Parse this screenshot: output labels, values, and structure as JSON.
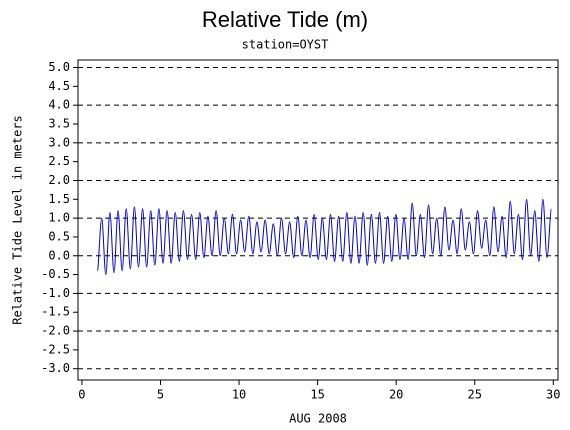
{
  "chart_data": {
    "type": "line",
    "title": "Relative Tide (m)",
    "subtitle": "station=OYST",
    "x_label": "AUG 2008",
    "y_label": "Relative Tide Level in meters",
    "xlim": [
      -0.25,
      30.3
    ],
    "ylim": [
      -3.3,
      5.2
    ],
    "xticks": [
      0,
      5,
      10,
      15,
      20,
      25,
      30
    ],
    "yticks": [
      {
        "value": 5,
        "label": "5.0"
      },
      4.5,
      {
        "value": 4,
        "label": "4.0"
      },
      3.5,
      {
        "value": 3,
        "label": "3.0"
      },
      2.5,
      {
        "value": 2,
        "label": "2.0"
      },
      1.5,
      {
        "value": 1,
        "label": "1.0"
      },
      0.5,
      {
        "value": 0,
        "label": "0.0"
      },
      -0.5,
      {
        "value": -1,
        "label": "-1.0"
      },
      -1.5,
      {
        "value": -2,
        "label": "-2.0"
      },
      -2.5,
      {
        "value": -3,
        "label": "-3.0"
      }
    ],
    "grid": "dashed",
    "x": [
      1.0,
      1.26,
      1.52,
      1.78,
      2.04,
      2.3,
      2.56,
      2.82,
      3.08,
      3.34,
      3.6,
      3.86,
      4.12,
      4.38,
      4.64,
      4.9,
      5.16,
      5.42,
      5.68,
      5.94,
      6.2,
      6.46,
      6.72,
      6.98,
      7.24,
      7.5,
      7.76,
      8.02,
      8.28,
      8.54,
      8.8,
      9.06,
      9.32,
      9.58,
      9.84,
      10.1,
      10.36,
      10.62,
      10.88,
      11.14,
      11.4,
      11.66,
      11.92,
      12.18,
      12.44,
      12.7,
      12.96,
      13.22,
      13.48,
      13.74,
      14.0,
      14.26,
      14.52,
      14.78,
      15.04,
      15.3,
      15.56,
      15.82,
      16.08,
      16.34,
      16.6,
      16.86,
      17.12,
      17.38,
      17.64,
      17.9,
      18.16,
      18.42,
      18.68,
      18.94,
      19.2,
      19.46,
      19.72,
      19.98,
      20.24,
      20.5,
      20.76,
      21.02,
      21.28,
      21.54,
      21.8,
      22.06,
      22.32,
      22.58,
      22.84,
      23.1,
      23.36,
      23.62,
      23.88,
      24.14,
      24.4,
      24.66,
      24.92,
      25.18,
      25.44,
      25.7,
      25.96,
      26.22,
      26.48,
      26.74,
      27.0,
      27.26,
      27.52,
      27.78,
      28.04,
      28.3,
      28.56,
      28.82,
      29.08,
      29.34,
      29.6,
      29.86
    ],
    "series": [
      {
        "color": "#0000cc",
        "values": [
          -0.4,
          1.0,
          -0.5,
          1.15,
          -0.45,
          1.2,
          -0.4,
          1.25,
          -0.35,
          1.3,
          -0.3,
          1.25,
          -0.3,
          1.2,
          -0.25,
          1.25,
          -0.2,
          1.2,
          -0.2,
          1.15,
          -0.15,
          1.2,
          -0.1,
          1.1,
          -0.1,
          1.15,
          -0.05,
          1.05,
          0.0,
          1.2,
          0.0,
          1.0,
          0.05,
          1.1,
          0.05,
          0.95,
          0.1,
          1.05,
          0.05,
          0.9,
          0.1,
          0.95,
          0.05,
          0.85,
          0.0,
          1.0,
          0.05,
          0.9,
          -0.05,
          1.05,
          0.0,
          0.95,
          -0.05,
          1.1,
          -0.1,
          1.0,
          -0.1,
          1.1,
          -0.15,
          1.05,
          -0.15,
          1.15,
          -0.2,
          1.05,
          -0.2,
          1.15,
          -0.25,
          1.1,
          -0.2,
          1.15,
          -0.2,
          1.05,
          -0.15,
          1.1,
          -0.1,
          1.0,
          -0.1,
          1.4,
          0.0,
          1.1,
          -0.05,
          1.35,
          0.05,
          1.0,
          0.0,
          1.3,
          0.15,
          0.95,
          0.05,
          1.25,
          0.15,
          0.9,
          0.05,
          1.2,
          0.2,
          0.95,
          0.0,
          1.3,
          0.1,
          1.05,
          -0.05,
          1.45,
          0.05,
          1.1,
          -0.1,
          1.5,
          0.0,
          1.2,
          -0.15,
          1.5,
          -0.05,
          1.25
        ]
      }
    ]
  }
}
